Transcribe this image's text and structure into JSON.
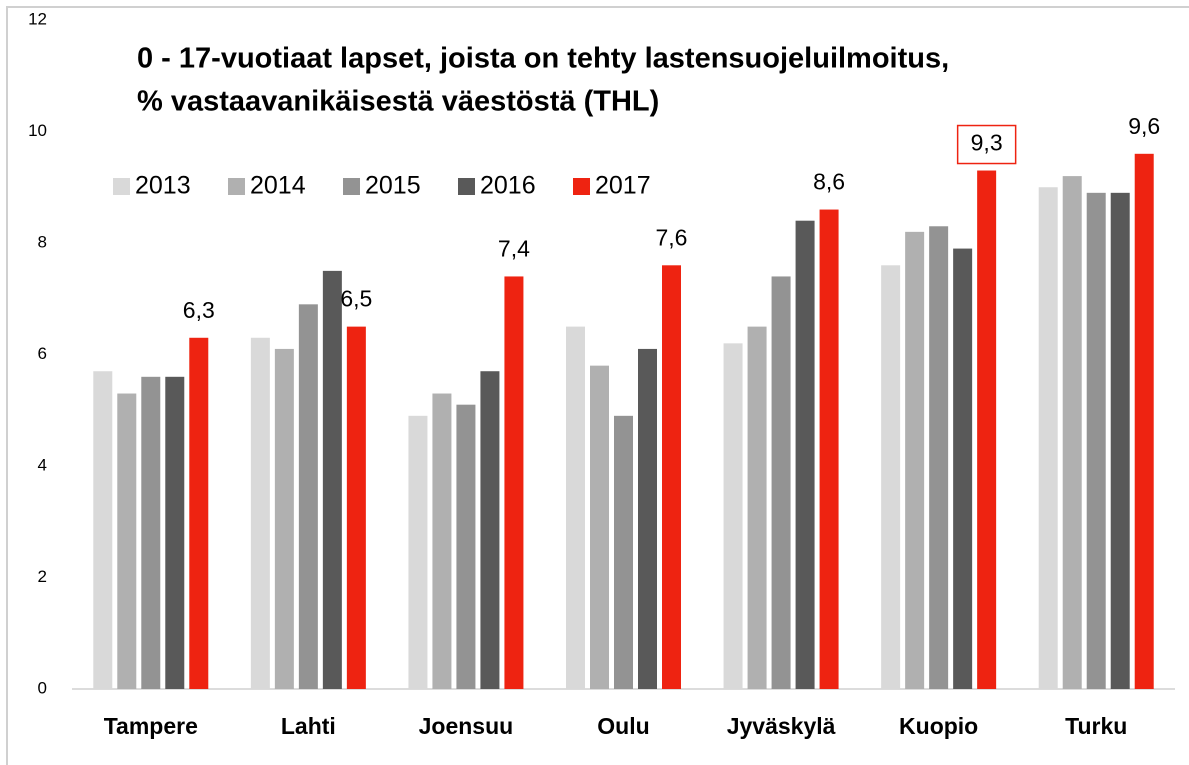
{
  "chart_data": {
    "type": "bar",
    "title": [
      "0 - 17-vuotiaat lapset, joista on tehty lastensuojeluilmoitus,",
      "% vastaavanikäisestä väestöstä (THL)"
    ],
    "categories": [
      "Tampere",
      "Lahti",
      "Joensuu",
      "Oulu",
      "Jyväskylä",
      "Kuopio",
      "Turku"
    ],
    "series": [
      {
        "name": "2013",
        "color": "#d9d9d9",
        "values": [
          5.7,
          6.3,
          4.9,
          6.5,
          6.2,
          7.6,
          9.0
        ]
      },
      {
        "name": "2014",
        "color": "#b0b0b0",
        "values": [
          5.3,
          6.1,
          5.3,
          5.8,
          6.5,
          8.2,
          9.2
        ]
      },
      {
        "name": "2015",
        "color": "#939393",
        "values": [
          5.6,
          6.9,
          5.1,
          4.9,
          7.4,
          8.3,
          8.9
        ]
      },
      {
        "name": "2016",
        "color": "#595959",
        "values": [
          5.6,
          7.5,
          5.7,
          6.1,
          8.4,
          7.9,
          8.9
        ]
      },
      {
        "name": "2017",
        "color": "#ee2311",
        "values": [
          6.3,
          6.5,
          7.4,
          7.6,
          8.6,
          9.3,
          9.6
        ],
        "value_labels": [
          "6,3",
          "6,5",
          "7,4",
          "7,6",
          "8,6",
          "9,3",
          "9,6"
        ]
      }
    ],
    "highlight": "Kuopio",
    "ylim": [
      0,
      12
    ],
    "yticks": [
      0,
      2,
      4,
      6,
      8,
      10,
      12
    ],
    "grid": false
  }
}
